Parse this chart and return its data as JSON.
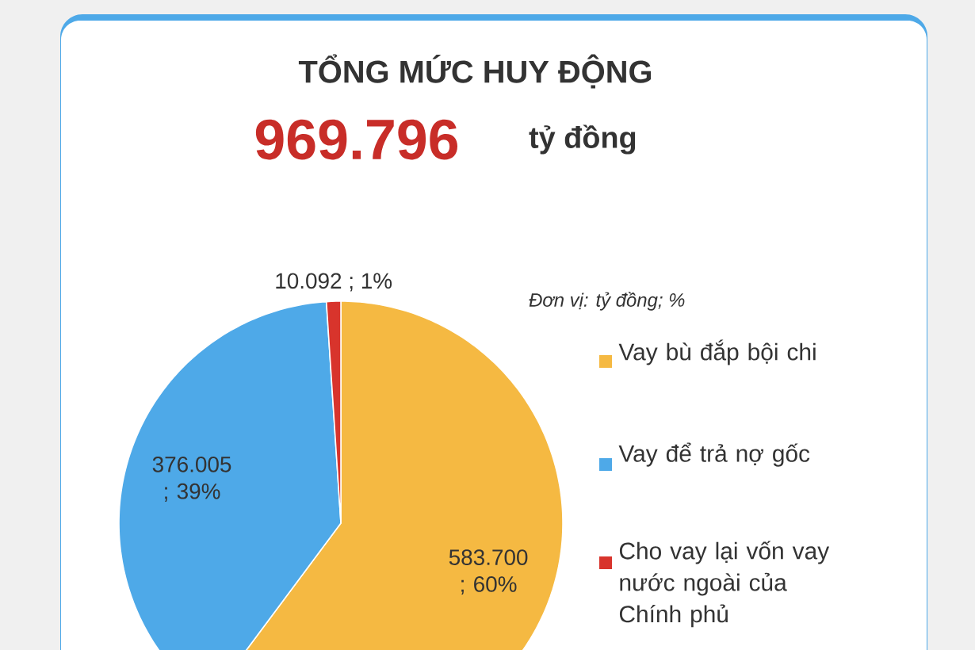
{
  "chart_data": {
    "type": "pie",
    "title": "TỔNG MỨC HUY ĐỘNG",
    "annotations": [
      "969.796",
      "tỷ đồng",
      "Đơn vị: tỷ đồng; %"
    ],
    "categories": [
      "Vay bù đắp bội chi",
      "Vay để trả nợ gốc",
      "Cho vay lại vốn vay nước ngoài của Chính phủ"
    ],
    "values": [
      583700,
      376005,
      10092
    ],
    "colors": [
      "#f5b942",
      "#4ea9e8",
      "#d8342c"
    ],
    "value_labels": [
      "583.700 ; 60%",
      "376.005 ; 39%",
      "10.092 ; 1%"
    ],
    "legend": "right"
  }
}
